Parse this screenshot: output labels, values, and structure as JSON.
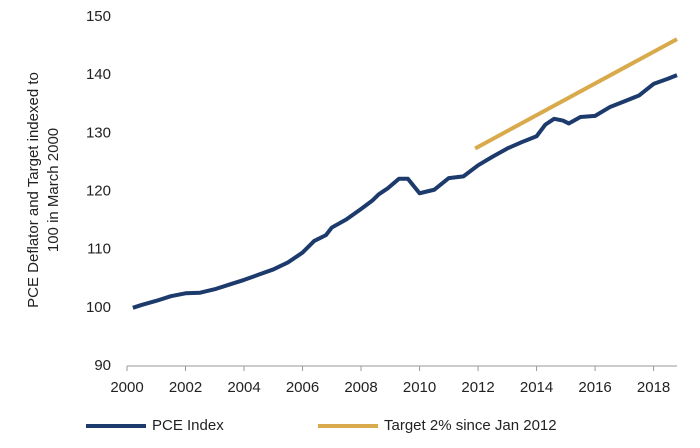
{
  "chart_data": {
    "type": "line",
    "ylabel": [
      "PCE Deflator and Target indexed to",
      "100 in March 2000"
    ],
    "xlim": [
      2000,
      2018.8
    ],
    "xticks": [
      2000,
      2002,
      2004,
      2006,
      2008,
      2010,
      2012,
      2014,
      2016,
      2018
    ],
    "ylim": [
      90,
      150
    ],
    "yticks": [
      90,
      100,
      110,
      120,
      130,
      140,
      150
    ],
    "grid": false,
    "legend": "bottom",
    "series": [
      {
        "name": "PCE Index",
        "color": "#1c3a6b",
        "x": [
          2000.2,
          2000.5,
          2001,
          2001.5,
          2002,
          2002.5,
          2003,
          2003.5,
          2004,
          2004.5,
          2005,
          2005.5,
          2006,
          2006.4,
          2006.8,
          2007,
          2007.5,
          2008,
          2008.4,
          2008.6,
          2008.9,
          2009.3,
          2009.6,
          2010,
          2010.5,
          2011,
          2011.5,
          2012,
          2012.5,
          2013,
          2013.5,
          2014,
          2014.3,
          2014.6,
          2014.9,
          2015.1,
          2015.5,
          2016,
          2016.5,
          2017,
          2017.5,
          2018,
          2018.5,
          2018.8
        ],
        "values": [
          100,
          100.5,
          101.2,
          102,
          102.5,
          102.6,
          103.2,
          104,
          104.8,
          105.7,
          106.6,
          107.8,
          109.5,
          111.5,
          112.5,
          113.8,
          115.2,
          117,
          118.5,
          119.5,
          120.5,
          122.2,
          122.2,
          119.7,
          120.3,
          122.3,
          122.6,
          124.5,
          126,
          127.4,
          128.5,
          129.5,
          131.5,
          132.5,
          132.2,
          131.7,
          132.8,
          133,
          134.5,
          135.5,
          136.5,
          138.5,
          139.4,
          140
        ]
      },
      {
        "name": "Target 2% since Jan 2012",
        "color": "#d8aa4c",
        "x": [
          2011.9,
          2018.8
        ],
        "values": [
          127.4,
          146.2
        ]
      }
    ]
  }
}
